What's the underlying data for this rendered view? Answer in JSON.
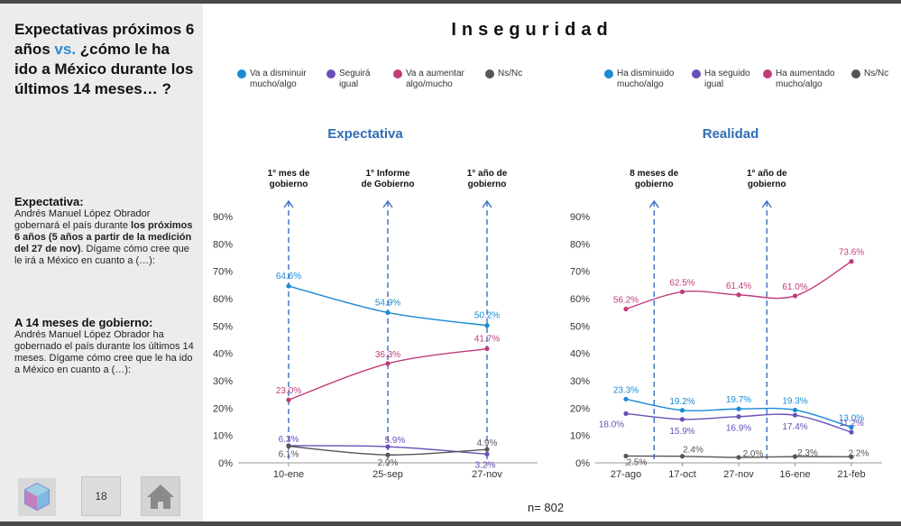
{
  "title": "Inseguridad",
  "sidebar": {
    "question_part1": "Expectativas próximos 6 años ",
    "question_vs": "vs.",
    "question_part2": " ¿cómo le ha ido a México durante los últimos 14 meses… ?",
    "expectativa_heading": "Expectativa:",
    "expectativa_text1": "Andrés Manuel López Obrador gobernará el país durante ",
    "expectativa_bold": "los próximos 6 años (5 años a partir de la medición del 27 de nov)",
    "expectativa_text2": ". Dígame cómo cree que le irá a México en cuanto a (…):",
    "meses_heading": "A 14 meses de gobierno:",
    "meses_text": "Andrés Manuel López Obrador ha gobernado el país durante los últimos 14 meses. Dígame cómo cree que le ha ido a México en cuanto a (…):",
    "page_number": "18"
  },
  "footer": {
    "n_label": "n= 802"
  },
  "colors": {
    "blue": "#1a8ad4",
    "purple": "#6a4fb8",
    "magenta": "#c03b7a",
    "gray": "#555555",
    "title": "#2e6db3"
  },
  "chart_data": [
    {
      "type": "line",
      "title": "Expectativa",
      "categories": [
        "10-ene",
        "25-sep",
        "27-nov"
      ],
      "ylim": [
        0,
        90
      ],
      "yticks": [
        "0%",
        "10%",
        "20%",
        "30%",
        "40%",
        "50%",
        "60%",
        "70%",
        "80%",
        "90%"
      ],
      "legend": [
        "Va a disminuir mucho/algo",
        "Seguirá igual",
        "Va a aumentar algo/mucho",
        "Ns/Nc"
      ],
      "series": [
        {
          "name": "Va a disminuir mucho/algo",
          "color": "#1a8ad4",
          "values": [
            64.6,
            54.9,
            50.2
          ],
          "labels": [
            "64.6%",
            "54.9%",
            "50.2%"
          ]
        },
        {
          "name": "Seguirá igual",
          "color": "#6a4fb8",
          "values": [
            6.3,
            5.9,
            3.2
          ],
          "labels": [
            "6.3%",
            "5.9%",
            "3.2%"
          ]
        },
        {
          "name": "Va a aumentar algo/mucho",
          "color": "#c03b7a",
          "values": [
            23.0,
            36.3,
            41.7
          ],
          "labels": [
            "23.0%",
            "36.3%",
            "41.7%"
          ]
        },
        {
          "name": "Ns/Nc",
          "color": "#555555",
          "values": [
            6.1,
            2.9,
            4.9
          ],
          "labels": [
            "6.1%",
            "2.9%",
            "4.9%"
          ]
        }
      ],
      "annotations": [
        {
          "text": [
            "1° mes de",
            "gobierno"
          ],
          "at": 0
        },
        {
          "text": [
            "1° Informe",
            "de Gobierno"
          ],
          "at": 1
        },
        {
          "text": [
            "1° año de",
            "gobierno"
          ],
          "at": 2
        }
      ]
    },
    {
      "type": "line",
      "title": "Realidad",
      "categories": [
        "27-ago",
        "17-oct",
        "27-nov",
        "16-ene",
        "21-feb"
      ],
      "ylim": [
        0,
        90
      ],
      "yticks": [
        "0%",
        "10%",
        "20%",
        "30%",
        "40%",
        "50%",
        "60%",
        "70%",
        "80%",
        "90%"
      ],
      "legend": [
        "Ha disminuido mucho/algo",
        "Ha seguido igual",
        "Ha aumentado mucho/algo",
        "Ns/Nc"
      ],
      "series": [
        {
          "name": "Ha disminuido mucho/algo",
          "color": "#1a8ad4",
          "values": [
            23.3,
            19.2,
            19.7,
            19.3,
            13.0
          ],
          "labels": [
            "23.3%",
            "19.2%",
            "19.7%",
            "19.3%",
            "13.0%"
          ]
        },
        {
          "name": "Ha seguido igual",
          "color": "#6a4fb8",
          "values": [
            18.0,
            15.9,
            16.9,
            17.4,
            11.2
          ],
          "labels": [
            "18.0%",
            "15.9%",
            "16.9%",
            "17.4%",
            "11.2%"
          ]
        },
        {
          "name": "Ha aumentado mucho/algo",
          "color": "#c03b7a",
          "values": [
            56.2,
            62.5,
            61.4,
            61.0,
            73.6
          ],
          "labels": [
            "56.2%",
            "62.5%",
            "61.4%",
            "61.0%",
            "73.6%"
          ]
        },
        {
          "name": "Ns/Nc",
          "color": "#555555",
          "values": [
            2.5,
            2.4,
            2.0,
            2.3,
            2.2
          ],
          "labels": [
            "2.5%",
            "2.4%",
            "2.0%",
            "2.3%",
            "2.2%"
          ]
        }
      ],
      "annotations": [
        {
          "text": [
            "8 meses de",
            "gobierno"
          ],
          "at": 0.5
        },
        {
          "text": [
            "1° año de",
            "gobierno"
          ],
          "at": 2.5
        }
      ]
    }
  ]
}
